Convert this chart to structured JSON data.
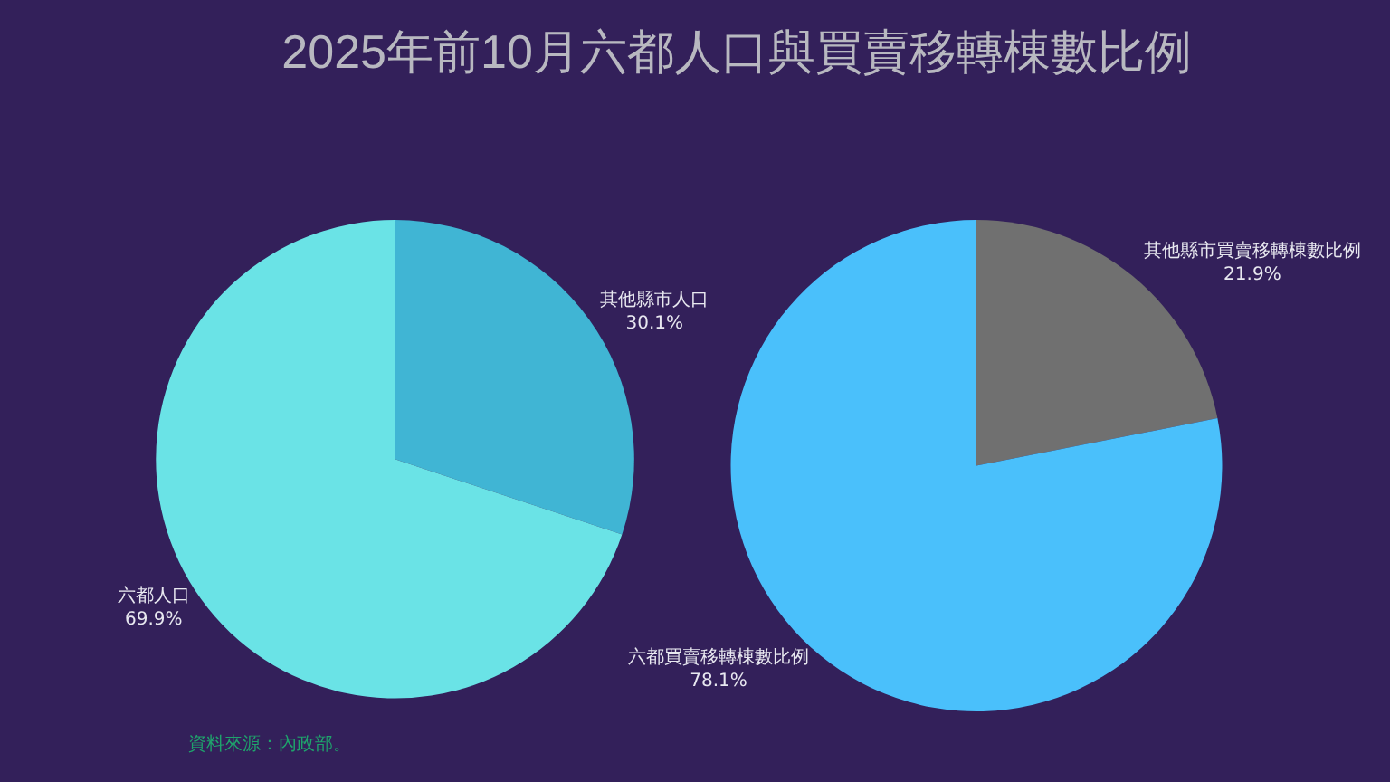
{
  "chart_data": [
    {
      "type": "pie",
      "title": "2025年前10月六都人口與買賣移轉棟數比例",
      "categories": [
        "其他縣市人口",
        "六都人口"
      ],
      "values": [
        30.1,
        69.9
      ],
      "value_labels": [
        "30.1%",
        "69.9%"
      ],
      "colors": [
        "#40b5d4",
        "#6ae3e6"
      ],
      "annotations": [
        "資料來源：內政部。"
      ],
      "legend": false
    },
    {
      "type": "pie",
      "categories": [
        "其他縣市買賣移轉棟數比例",
        "六都買賣移轉棟數比例"
      ],
      "values": [
        21.9,
        78.1
      ],
      "value_labels": [
        "21.9%",
        "78.1%"
      ],
      "colors": [
        "#707070",
        "#4ac0fb"
      ],
      "legend": false
    }
  ]
}
